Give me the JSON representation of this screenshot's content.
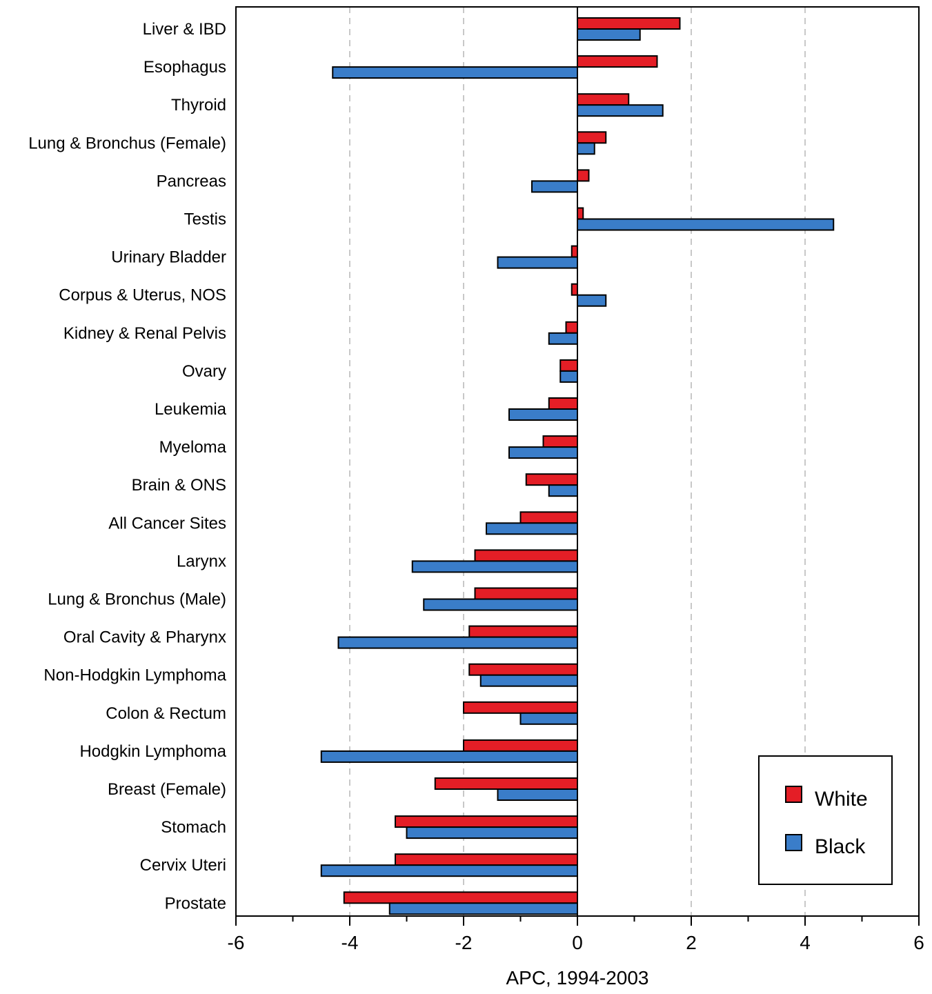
{
  "chart_data": {
    "type": "bar",
    "orientation": "horizontal",
    "xlabel": "APC, 1994-2003",
    "xlim": [
      -6,
      6
    ],
    "xticks": [
      -6,
      -4,
      -2,
      0,
      2,
      4,
      6
    ],
    "xtick_labels": [
      "-6",
      "-4",
      "-2",
      "0",
      "2",
      "4",
      "6"
    ],
    "grid": "vertical dashed at -4, -2, 2, 4",
    "legend_position": "bottom-right",
    "categories": [
      "Liver & IBD",
      "Esophagus",
      "Thyroid",
      "Lung & Bronchus (Female)",
      "Pancreas",
      "Testis",
      "Urinary Bladder",
      "Corpus & Uterus, NOS",
      "Kidney & Renal Pelvis",
      "Ovary",
      "Leukemia",
      "Myeloma",
      "Brain & ONS",
      "All Cancer Sites",
      "Larynx",
      "Lung & Bronchus (Male)",
      "Oral Cavity & Pharynx",
      "Non-Hodgkin Lymphoma",
      "Colon & Rectum",
      "Hodgkin Lymphoma",
      "Breast (Female)",
      "Stomach",
      "Cervix Uteri",
      "Prostate"
    ],
    "series": [
      {
        "name": "White",
        "color": "#e41e26",
        "values": [
          1.8,
          1.4,
          0.9,
          0.5,
          0.2,
          0.1,
          -0.1,
          -0.1,
          -0.2,
          -0.3,
          -0.5,
          -0.6,
          -0.9,
          -1.0,
          -1.8,
          -1.8,
          -1.9,
          -1.9,
          -2.0,
          -2.0,
          -2.5,
          -3.2,
          -3.2,
          -4.1
        ]
      },
      {
        "name": "Black",
        "color": "#3a7dc9",
        "values": [
          1.1,
          -4.3,
          1.5,
          0.3,
          -0.8,
          4.5,
          -1.4,
          0.5,
          -0.5,
          -0.3,
          -1.2,
          -1.2,
          -0.5,
          -1.6,
          -2.9,
          -2.7,
          -4.2,
          -1.7,
          -1.0,
          -4.5,
          -1.4,
          -3.0,
          -4.5,
          -3.3
        ]
      }
    ]
  }
}
